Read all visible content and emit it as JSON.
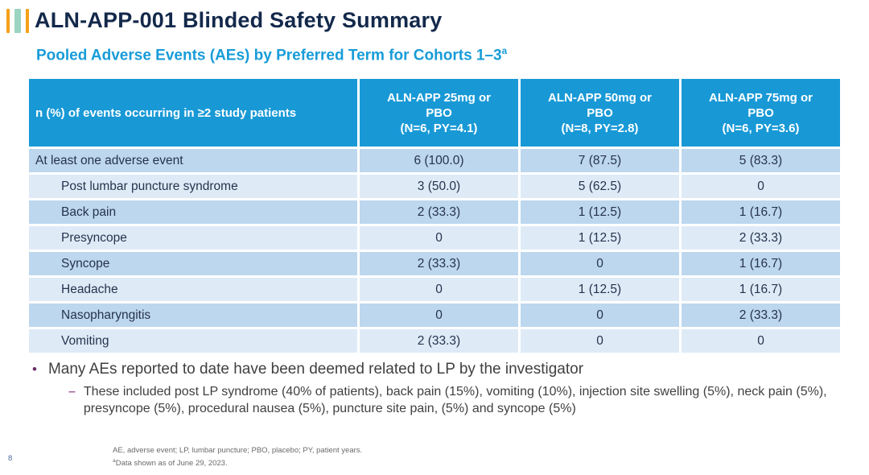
{
  "slide": {
    "title": "ALN-APP-001 Blinded Safety Summary",
    "subtitle": {
      "text": "Pooled Adverse Events (AEs) by Preferred Term for Cohorts 1–3",
      "superscript": "a"
    },
    "page_number": "8"
  },
  "table": {
    "header": {
      "row_label": "n (%) of events occurring in ≥2 study patients",
      "columns": [
        {
          "lines": [
            "ALN-APP 25mg or",
            "PBO",
            "(N=6, PY=4.1)"
          ]
        },
        {
          "lines": [
            "ALN-APP 50mg or",
            "PBO",
            "(N=8, PY=2.8)"
          ]
        },
        {
          "lines": [
            "ALN-APP 75mg or",
            "PBO",
            "(N=6, PY=3.6)"
          ]
        }
      ]
    },
    "rows": [
      {
        "label": "At least one adverse event",
        "values": [
          "6 (100.0)",
          "7 (87.5)",
          "5 (83.3)"
        ]
      },
      {
        "label": "Post lumbar puncture syndrome",
        "values": [
          "3 (50.0)",
          "5 (62.5)",
          "0"
        ]
      },
      {
        "label": "Back pain",
        "values": [
          "2 (33.3)",
          "1 (12.5)",
          "1 (16.7)"
        ]
      },
      {
        "label": "Presyncope",
        "values": [
          "0",
          "1 (12.5)",
          "2 (33.3)"
        ]
      },
      {
        "label": "Syncope",
        "values": [
          "2 (33.3)",
          "0",
          "1 (16.7)"
        ]
      },
      {
        "label": "Headache",
        "values": [
          "0",
          "1 (12.5)",
          "1 (16.7)"
        ]
      },
      {
        "label": "Nasopharyngitis",
        "values": [
          "0",
          "0",
          "2 (33.3)"
        ]
      },
      {
        "label": "Vomiting",
        "values": [
          "2 (33.3)",
          "0",
          "0"
        ]
      }
    ]
  },
  "bullets": {
    "level1": "Many AEs reported to date have been deemed related to LP by the investigator",
    "level2": "These included post LP syndrome (40% of patients), back pain (15%), vomiting (10%), injection site swelling (5%), neck pain (5%), presyncope (5%), procedural nausea (5%), puncture site pain, (5%) and syncope (5%)",
    "dot_glyph": "•",
    "dash_glyph": "–"
  },
  "footnotes": {
    "abbreviations": "AE, adverse event; LP, lumbar puncture; PBO, placebo; PY, patient years.",
    "data_note_superscript": "a",
    "data_note_text": "Data shown as of June 29, 2023."
  },
  "colors": {
    "title_navy": "#13294B",
    "subtitle_blue": "#189CD8",
    "table_header_bg": "#1899D6",
    "row_alt_dark": "#BDD7EE",
    "row_alt_light": "#DEEBF7",
    "accent_orange": "#F6A01A",
    "accent_teal": "#9BD4C0",
    "bullet_dot": "#6C2D62",
    "bullet_dash": "#A5629B"
  }
}
